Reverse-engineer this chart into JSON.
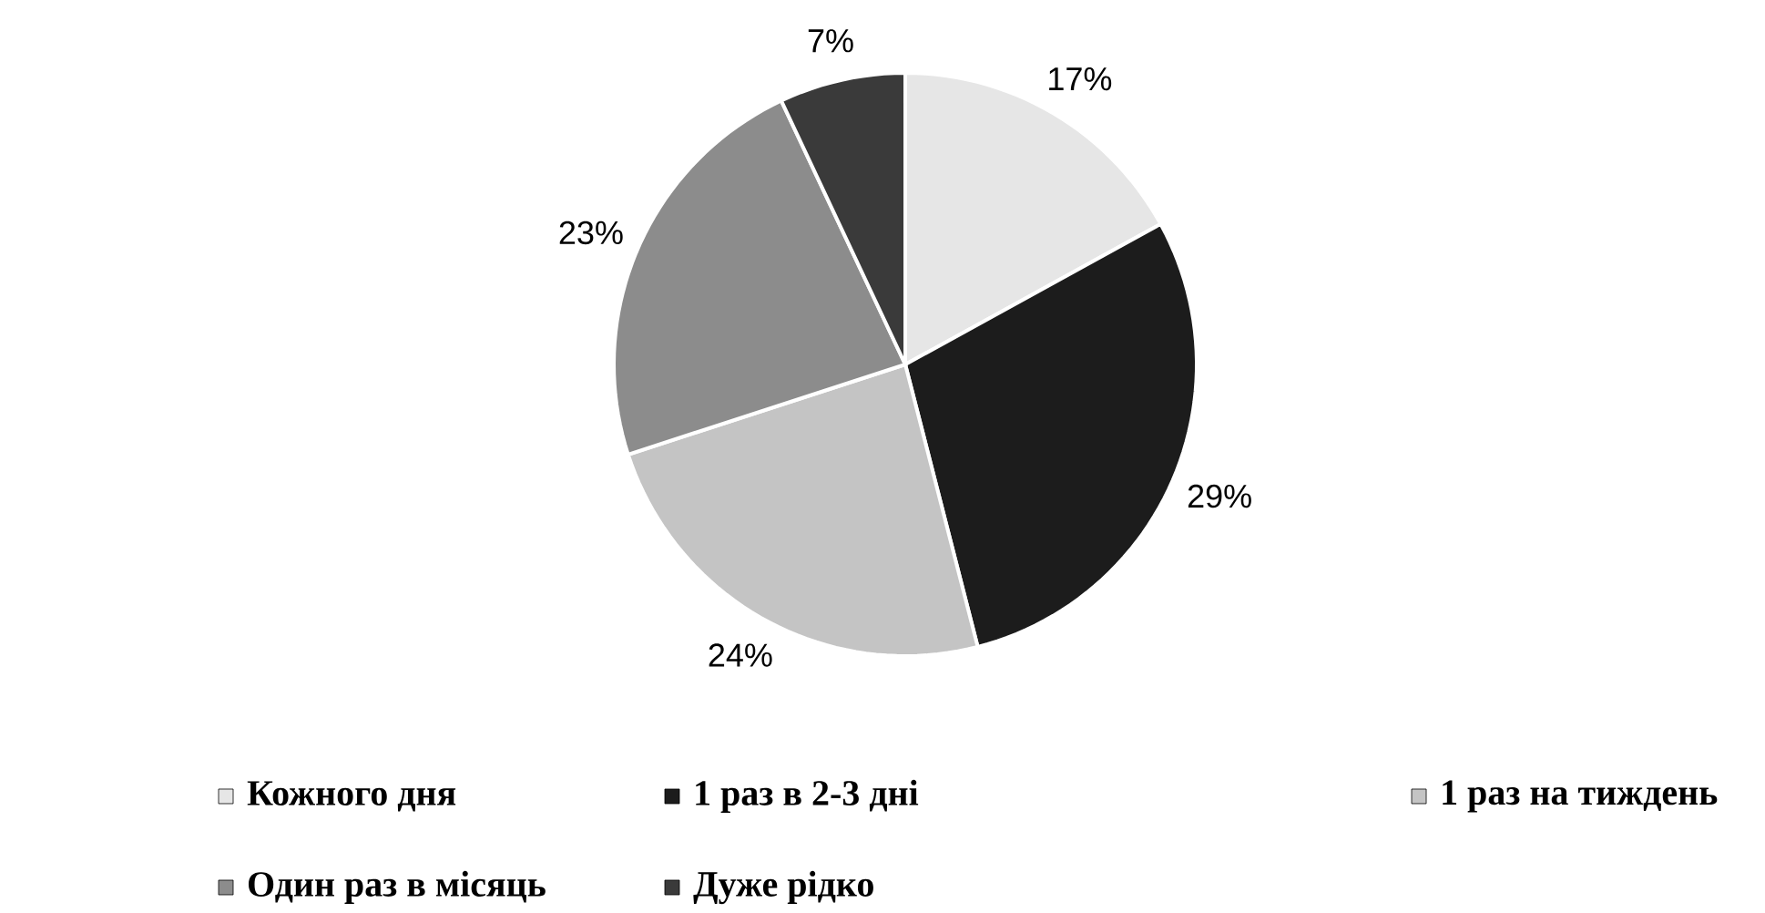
{
  "chart_data": {
    "type": "pie",
    "categories": [
      "Кожного дня",
      "1 раз в 2-3 дні",
      "1 раз на тиждень",
      "Один раз в місяць",
      "Дуже рідко"
    ],
    "values": [
      17,
      29,
      24,
      23,
      7
    ],
    "colors": [
      "#e6e6e6",
      "#1c1c1c",
      "#c4c4c4",
      "#8c8c8c",
      "#3a3a3a"
    ],
    "value_labels": [
      "17%",
      "29%",
      "24%",
      "23%",
      "7%"
    ],
    "legend": "bottom"
  }
}
